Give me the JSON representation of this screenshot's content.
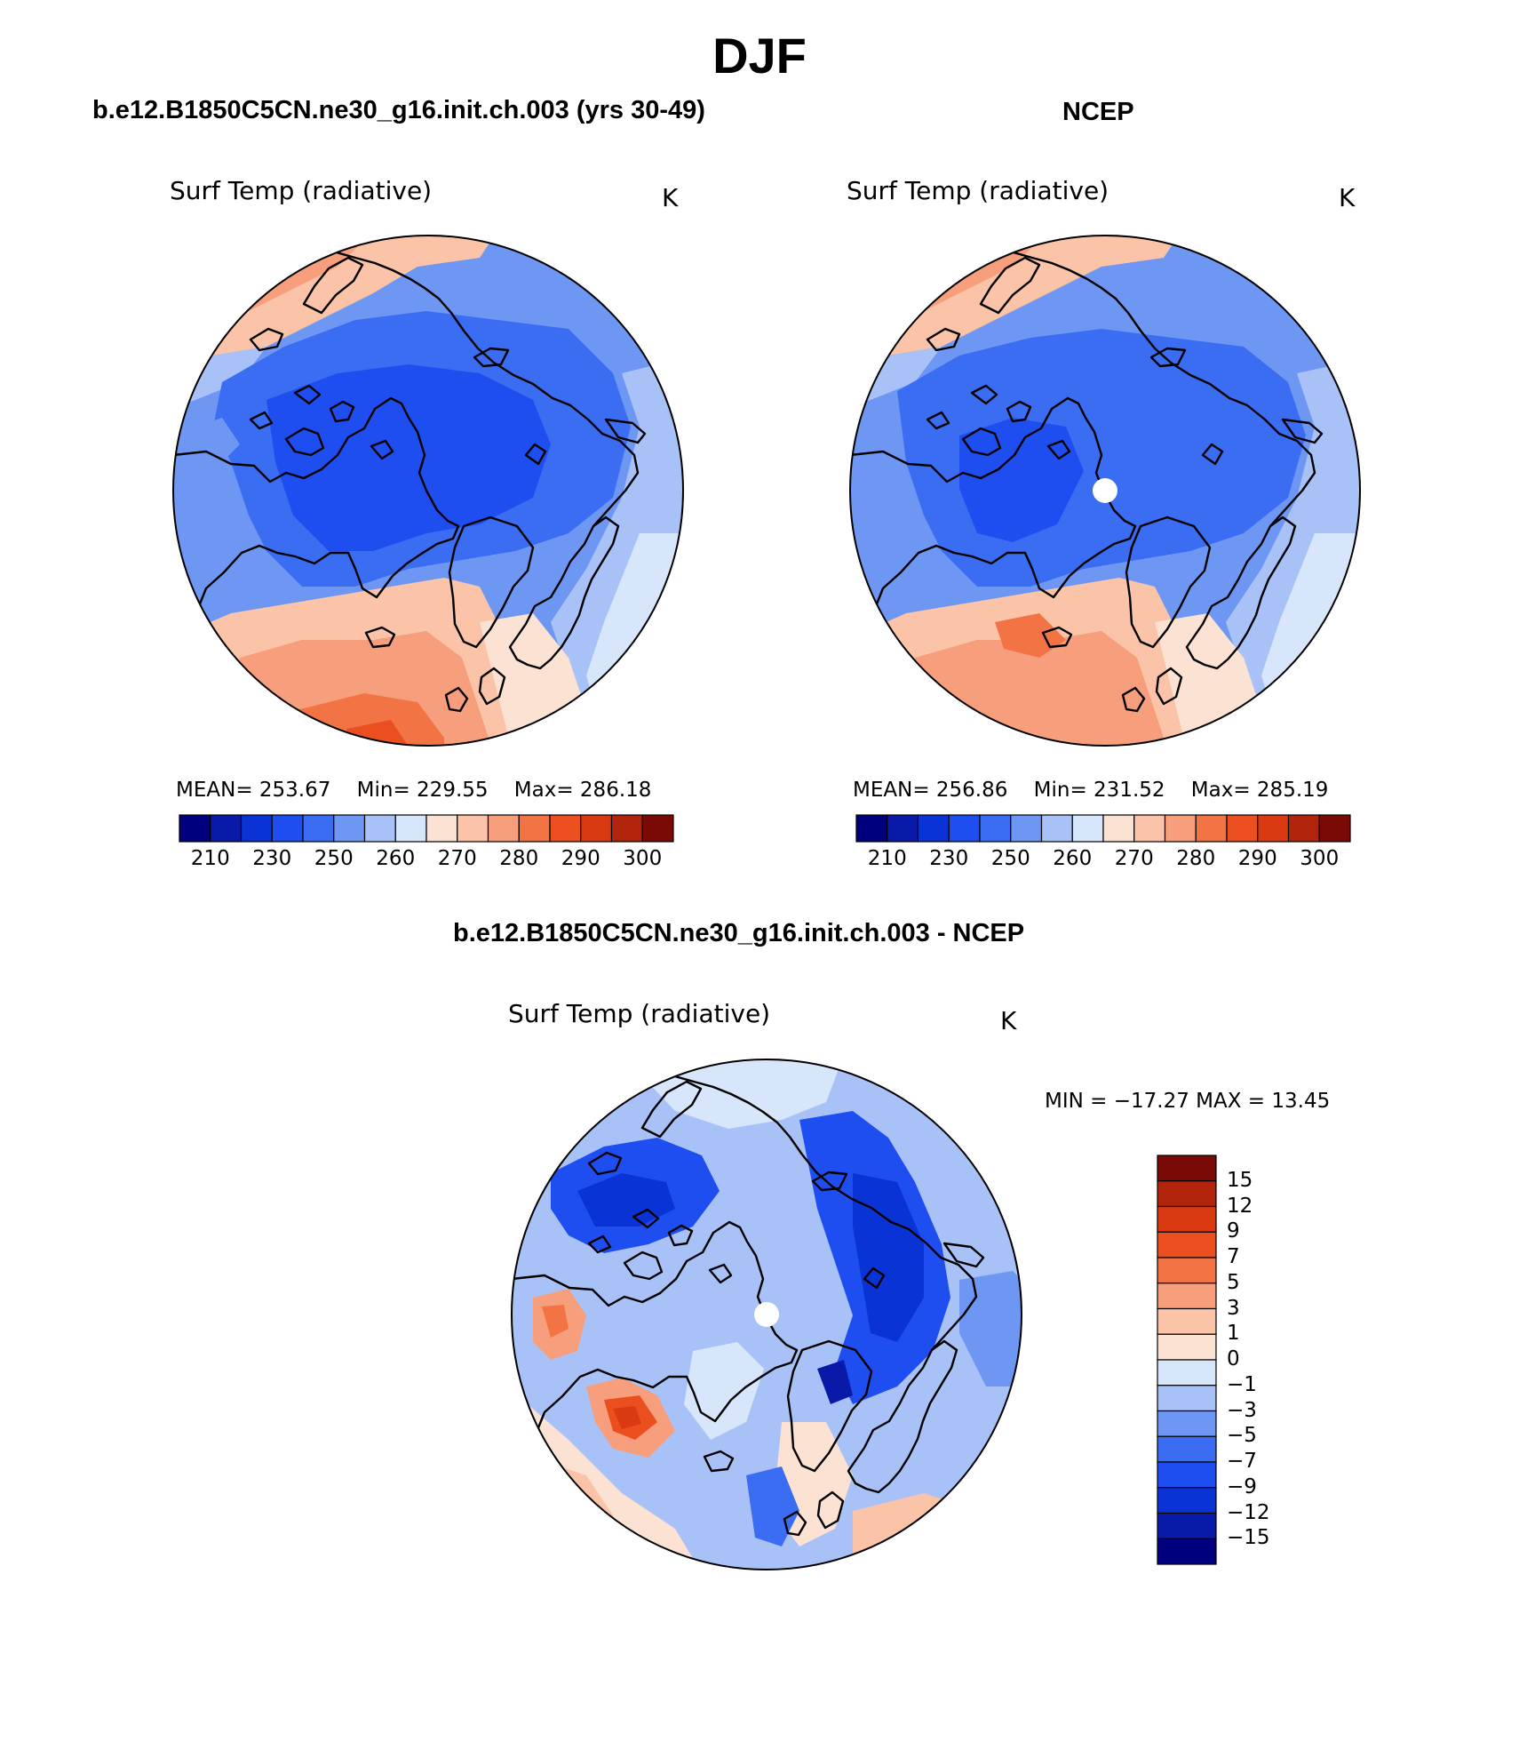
{
  "figure": {
    "title": "DJF",
    "variable_label": "Surf Temp (radiative)",
    "units": "K"
  },
  "colors": {
    "abs_scale": [
      "#00007f",
      "#0a1aa8",
      "#0a33d6",
      "#1f4ef0",
      "#3a6df2",
      "#6e97f4",
      "#a8c2f8",
      "#d8e6fb",
      "#fce2d2",
      "#fbc4a8",
      "#f79e7d",
      "#f27445",
      "#ec4f1f",
      "#d93a12",
      "#b2250c",
      "#7a0a06"
    ],
    "diff_scale": [
      "#00007f",
      "#0a1aa8",
      "#0a33d6",
      "#1f4ef0",
      "#3a6df2",
      "#6e97f4",
      "#a8c2f8",
      "#d8e6fb",
      "#fce2d2",
      "#fbc4a8",
      "#f79e7d",
      "#f27445",
      "#ec4f1f",
      "#d93a12",
      "#b2250c",
      "#7a0a06"
    ]
  },
  "panels": [
    {
      "title": "b.e12.B1850C5CN.ne30_g16.init.ch.003 (yrs 30-49)",
      "label": "Surf Temp (radiative)",
      "units": "K",
      "stats": {
        "mean_label": "MEAN=",
        "mean": "253.67",
        "min_label": "Min=",
        "min": "229.55",
        "max_label": "Max=",
        "max": "286.18"
      },
      "colorbar_ticks": [
        "210",
        "230",
        "250",
        "260",
        "270",
        "280",
        "290",
        "300"
      ]
    },
    {
      "title": "NCEP",
      "label": "Surf Temp (radiative)",
      "units": "K",
      "stats": {
        "mean_label": "MEAN=",
        "mean": "256.86",
        "min_label": "Min=",
        "min": "231.52",
        "max_label": "Max=",
        "max": "285.19"
      },
      "colorbar_ticks": [
        "210",
        "230",
        "250",
        "260",
        "270",
        "280",
        "290",
        "300"
      ]
    },
    {
      "title": "b.e12.B1850C5CN.ne30_g16.init.ch.003 - NCEP",
      "label": "Surf Temp (radiative)",
      "units": "K",
      "minmax_text": "MIN = −17.27 MAX =   13.45",
      "colorbar_ticks": [
        "15",
        "12",
        "9",
        "7",
        "5",
        "3",
        "1",
        "0",
        "−1",
        "−3",
        "−5",
        "−7",
        "−9",
        "−12",
        "−15"
      ]
    }
  ]
}
